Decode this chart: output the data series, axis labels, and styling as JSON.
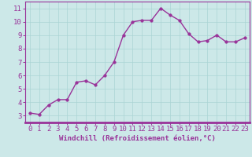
{
  "x": [
    0,
    1,
    2,
    3,
    4,
    5,
    6,
    7,
    8,
    9,
    10,
    11,
    12,
    13,
    14,
    15,
    16,
    17,
    18,
    19,
    20,
    21,
    22,
    23
  ],
  "y": [
    3.2,
    3.1,
    3.8,
    4.2,
    4.2,
    5.5,
    5.6,
    5.3,
    6.0,
    7.0,
    9.0,
    10.0,
    10.1,
    10.1,
    11.0,
    10.5,
    10.1,
    9.1,
    8.5,
    8.6,
    9.0,
    8.5,
    8.5,
    8.8
  ],
  "line_color": "#993399",
  "marker_color": "#993399",
  "bg_color": "#cce8e8",
  "grid_color": "#aad4d4",
  "axis_color": "#993399",
  "tick_color": "#993399",
  "xlabel": "Windchill (Refroidissement éolien,°C)",
  "ylim": [
    2.5,
    11.5
  ],
  "xlim": [
    -0.5,
    23.5
  ],
  "yticks": [
    3,
    4,
    5,
    6,
    7,
    8,
    9,
    10,
    11
  ],
  "xticks": [
    0,
    1,
    2,
    3,
    4,
    5,
    6,
    7,
    8,
    9,
    10,
    11,
    12,
    13,
    14,
    15,
    16,
    17,
    18,
    19,
    20,
    21,
    22,
    23
  ],
  "xlabel_fontsize": 6.5,
  "tick_fontsize": 6.5,
  "line_width": 1.0,
  "marker_size": 2.5
}
